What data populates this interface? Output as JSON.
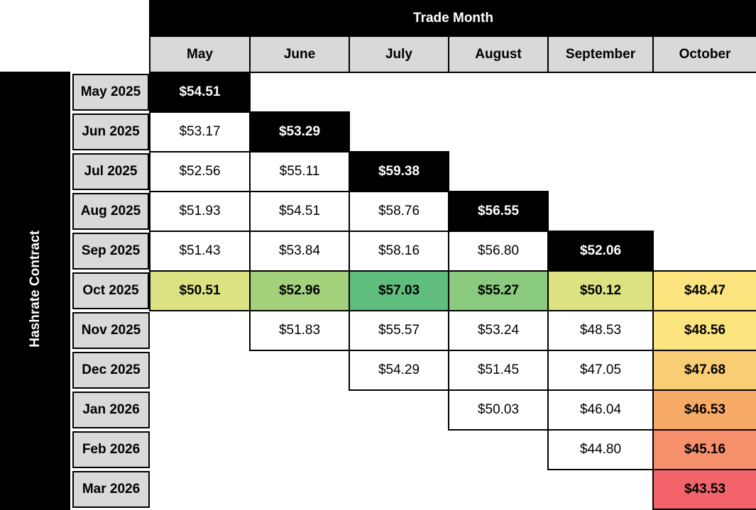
{
  "table": {
    "top_header": "Trade Month",
    "left_header": "Hashrate Contract",
    "columns": [
      "May",
      "June",
      "July",
      "August",
      "September",
      "October"
    ],
    "rows": [
      {
        "label": "May 2025",
        "cells": [
          {
            "value": "$54.51",
            "bg": "#000000",
            "fg": "#ffffff",
            "bold": true
          },
          null,
          null,
          null,
          null,
          null
        ]
      },
      {
        "label": "Jun 2025",
        "cells": [
          {
            "value": "$53.17"
          },
          {
            "value": "$53.29",
            "bg": "#000000",
            "fg": "#ffffff",
            "bold": true
          },
          null,
          null,
          null,
          null
        ]
      },
      {
        "label": "Jul 2025",
        "cells": [
          {
            "value": "$52.56"
          },
          {
            "value": "$55.11"
          },
          {
            "value": "$59.38",
            "bg": "#000000",
            "fg": "#ffffff",
            "bold": true
          },
          null,
          null,
          null
        ]
      },
      {
        "label": "Aug 2025",
        "cells": [
          {
            "value": "$51.93"
          },
          {
            "value": "$54.51"
          },
          {
            "value": "$58.76"
          },
          {
            "value": "$56.55",
            "bg": "#000000",
            "fg": "#ffffff",
            "bold": true
          },
          null,
          null
        ]
      },
      {
        "label": "Sep 2025",
        "cells": [
          {
            "value": "$51.43"
          },
          {
            "value": "$53.84"
          },
          {
            "value": "$58.16"
          },
          {
            "value": "$56.80"
          },
          {
            "value": "$52.06",
            "bg": "#000000",
            "fg": "#ffffff",
            "bold": true
          },
          null
        ]
      },
      {
        "label": "Oct 2025",
        "cells": [
          {
            "value": "$50.51",
            "bg": "#dce181",
            "bold": true
          },
          {
            "value": "$52.96",
            "bg": "#a4d17c",
            "bold": true
          },
          {
            "value": "$57.03",
            "bg": "#5fbd7d",
            "bold": true
          },
          {
            "value": "$55.27",
            "bg": "#8bcb7f",
            "bold": true
          },
          {
            "value": "$50.12",
            "bg": "#dce181",
            "bold": true
          },
          {
            "value": "$48.47",
            "bg": "#fce57f",
            "bold": true
          }
        ]
      },
      {
        "label": "Nov 2025",
        "cells": [
          null,
          {
            "value": "$51.83"
          },
          {
            "value": "$55.57"
          },
          {
            "value": "$53.24"
          },
          {
            "value": "$48.53"
          },
          {
            "value": "$48.56",
            "bg": "#fce57f",
            "bold": true
          }
        ]
      },
      {
        "label": "Dec 2025",
        "cells": [
          null,
          null,
          {
            "value": "$54.29"
          },
          {
            "value": "$51.45"
          },
          {
            "value": "$47.05"
          },
          {
            "value": "$47.68",
            "bg": "#f9cd74",
            "bold": true
          }
        ]
      },
      {
        "label": "Jan 2026",
        "cells": [
          null,
          null,
          null,
          {
            "value": "$50.03"
          },
          {
            "value": "$46.04"
          },
          {
            "value": "$46.53",
            "bg": "#f8ab66",
            "bold": true
          }
        ]
      },
      {
        "label": "Feb 2026",
        "cells": [
          null,
          null,
          null,
          null,
          {
            "value": "$44.80"
          },
          {
            "value": "$45.16",
            "bg": "#f6906c",
            "bold": true
          }
        ]
      },
      {
        "label": "Mar 2026",
        "cells": [
          null,
          null,
          null,
          null,
          null,
          {
            "value": "$43.53",
            "bg": "#f2646a",
            "bold": true
          }
        ]
      }
    ]
  },
  "colors": {
    "header_bg": "#d9d9d9",
    "diagonal_bg": "#000000",
    "diagonal_fg": "#ffffff",
    "border": "#000000",
    "scale_green": "#5fbd7d",
    "scale_yellow": "#fce57f",
    "scale_red": "#f2646a"
  },
  "chart_data": {
    "type": "heatmap",
    "title": "Trade Month",
    "xlabel": "Trade Month",
    "ylabel": "Hashrate Contract",
    "columns": [
      "May",
      "June",
      "July",
      "August",
      "September",
      "October"
    ],
    "rows": [
      "May 2025",
      "Jun 2025",
      "Jul 2025",
      "Aug 2025",
      "Sep 2025",
      "Oct 2025",
      "Nov 2025",
      "Dec 2025",
      "Jan 2026",
      "Feb 2026",
      "Mar 2026"
    ],
    "values": [
      [
        54.51,
        null,
        null,
        null,
        null,
        null
      ],
      [
        53.17,
        53.29,
        null,
        null,
        null,
        null
      ],
      [
        52.56,
        55.11,
        59.38,
        null,
        null,
        null
      ],
      [
        51.93,
        54.51,
        58.76,
        56.55,
        null,
        null
      ],
      [
        51.43,
        53.84,
        58.16,
        56.8,
        52.06,
        null
      ],
      [
        50.51,
        52.96,
        57.03,
        55.27,
        50.12,
        48.47
      ],
      [
        null,
        51.83,
        55.57,
        53.24,
        48.53,
        48.56
      ],
      [
        null,
        null,
        54.29,
        51.45,
        47.05,
        47.68
      ],
      [
        null,
        null,
        null,
        50.03,
        46.04,
        46.53
      ],
      [
        null,
        null,
        null,
        null,
        44.8,
        45.16
      ],
      [
        null,
        null,
        null,
        null,
        null,
        43.53
      ]
    ],
    "value_format": "$0.00",
    "notes": "Diagonal (contract month == trade month) cells rendered black with white bold text; Oct 2025 row and October column colored on red-yellow-green scale; other filled cells white."
  }
}
